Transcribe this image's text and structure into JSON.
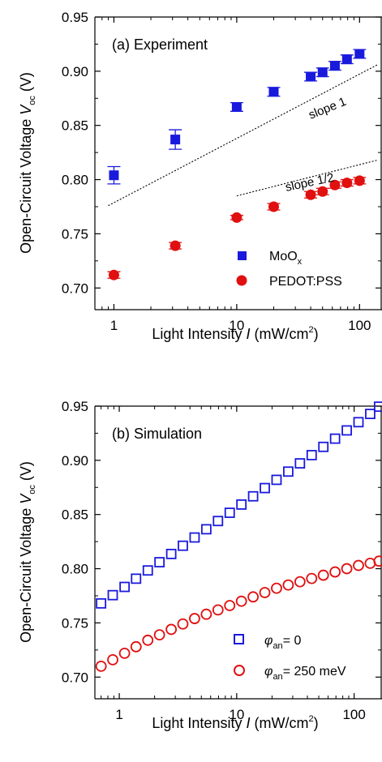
{
  "chart_data": [
    {
      "type": "scatter",
      "panel_label": "(a) Experiment",
      "xlabel": {
        "text": "Light Intensity ",
        "var": "I",
        "unit_pre": " (mW/cm",
        "unit_sup": "2",
        "unit_post": ")"
      },
      "ylabel": {
        "text": "Open-Circuit Voltage ",
        "var": "V",
        "var_sub": "oc",
        "unit": " (V)"
      },
      "xscale": "log",
      "xlim": [
        0.7,
        150
      ],
      "ylim": [
        0.68,
        0.95
      ],
      "xticks": [
        1,
        10,
        100
      ],
      "xtick_labels": [
        "1",
        "10",
        "100"
      ],
      "yticks": [
        0.7,
        0.75,
        0.8,
        0.85,
        0.9,
        0.95
      ],
      "ytick_labels": [
        "0.70",
        "0.75",
        "0.80",
        "0.85",
        "0.90",
        "0.95"
      ],
      "series": [
        {
          "name": "MoO",
          "name_sub": "x",
          "marker": "filled-square",
          "color": "#1a1adc",
          "x": [
            1,
            3.16,
            10,
            20,
            40,
            50,
            63,
            79,
            100
          ],
          "y": [
            0.804,
            0.837,
            0.867,
            0.881,
            0.895,
            0.899,
            0.905,
            0.911,
            0.916
          ],
          "err": [
            0.008,
            0.009,
            0.004,
            0.004,
            0.004,
            0.004,
            0.004,
            0.004,
            0.004
          ]
        },
        {
          "name": "PEDOT:PSS",
          "marker": "filled-circle",
          "color": "#e01010",
          "x": [
            1,
            3.16,
            10,
            20,
            40,
            50,
            63,
            79,
            100
          ],
          "y": [
            0.712,
            0.739,
            0.765,
            0.775,
            0.786,
            0.789,
            0.795,
            0.797,
            0.799
          ],
          "err": [
            0.003,
            0.003,
            0.002,
            0.003,
            0.003,
            0.003,
            0.003,
            0.003,
            0.003
          ]
        }
      ],
      "reference_lines": [
        {
          "label": "slope 1",
          "x": [
            0.9,
            140
          ],
          "y": [
            0.776,
            0.906
          ]
        },
        {
          "label": "slope 1/2",
          "x": [
            10,
            140
          ],
          "y": [
            0.785,
            0.818
          ]
        }
      ],
      "legend_position": "lower-right"
    },
    {
      "type": "scatter",
      "panel_label": "(b) Simulation",
      "xlabel": {
        "text": "Light Intensity ",
        "var": "I",
        "unit_pre": " (mW/cm",
        "unit_sup": "2",
        "unit_post": ")"
      },
      "ylabel": {
        "text": "Open-Circuit Voltage ",
        "var": "V",
        "var_sub": "oc",
        "unit": " (V)"
      },
      "xscale": "log",
      "xlim": [
        0.62,
        170
      ],
      "ylim": [
        0.68,
        0.95
      ],
      "xticks": [
        1,
        10,
        100
      ],
      "xtick_labels": [
        "1",
        "10",
        "100"
      ],
      "yticks": [
        0.7,
        0.75,
        0.8,
        0.85,
        0.9,
        0.95
      ],
      "ytick_labels": [
        "0.70",
        "0.75",
        "0.80",
        "0.85",
        "0.90",
        "0.95"
      ],
      "series": [
        {
          "name_var": "φ",
          "name_sub": "an",
          "name_tail": "= 0",
          "marker": "open-square",
          "color": "#1a1adc",
          "x": [
            0.7,
            0.88,
            1.11,
            1.39,
            1.75,
            2.2,
            2.77,
            3.48,
            4.38,
            5.51,
            6.93,
            8.72,
            10.97,
            13.8,
            17.36,
            21.84,
            27.48,
            34.57,
            43.49,
            54.71,
            68.83,
            86.59,
            108.93,
            137.04,
            163.0
          ],
          "y": [
            0.768,
            0.7756,
            0.7832,
            0.7908,
            0.7984,
            0.806,
            0.8136,
            0.8212,
            0.8288,
            0.8364,
            0.844,
            0.8516,
            0.8592,
            0.8668,
            0.8744,
            0.882,
            0.8896,
            0.8972,
            0.9048,
            0.9124,
            0.92,
            0.9276,
            0.9352,
            0.9428,
            0.9495
          ]
        },
        {
          "name_var": "φ",
          "name_sub": "an",
          "name_tail": "= 250 meV",
          "marker": "open-circle",
          "color": "#e01010",
          "x": [
            0.7,
            0.88,
            1.11,
            1.39,
            1.75,
            2.2,
            2.77,
            3.48,
            4.38,
            5.51,
            6.93,
            8.72,
            10.97,
            13.8,
            17.36,
            21.84,
            27.48,
            34.57,
            43.49,
            54.71,
            68.83,
            86.59,
            108.93,
            137.04,
            163.0
          ],
          "y": [
            0.71,
            0.716,
            0.722,
            0.728,
            0.734,
            0.739,
            0.744,
            0.749,
            0.754,
            0.758,
            0.762,
            0.766,
            0.77,
            0.774,
            0.778,
            0.782,
            0.785,
            0.788,
            0.791,
            0.794,
            0.797,
            0.8,
            0.803,
            0.805,
            0.807
          ]
        }
      ],
      "legend_position": "lower-right"
    }
  ]
}
